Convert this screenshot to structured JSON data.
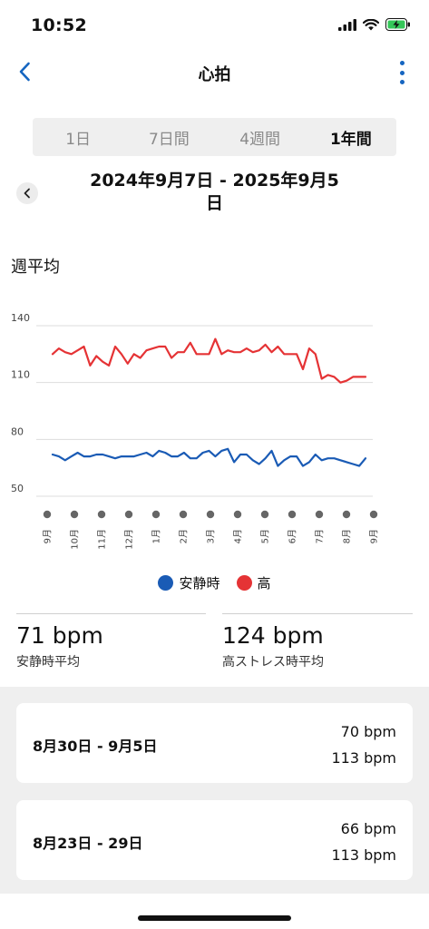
{
  "status": {
    "time": "10:52"
  },
  "nav": {
    "title": "心拍"
  },
  "tabs": [
    {
      "label": "1日",
      "active": false
    },
    {
      "label": "7日間",
      "active": false
    },
    {
      "label": "4週間",
      "active": false
    },
    {
      "label": "1年間",
      "active": true
    }
  ],
  "date_range": {
    "line1": "2024年9月7日 - 2025年9月5",
    "line2": "日"
  },
  "section_title": "週平均",
  "colors": {
    "resting": "#1a5bb5",
    "high": "#e53335",
    "accent": "#1565c0"
  },
  "chart_data": {
    "type": "line",
    "ylim": [
      50,
      140
    ],
    "yticks": [
      140,
      110,
      80,
      50
    ],
    "xticks": [
      "9月",
      "10月",
      "11月",
      "12月",
      "1月",
      "2月",
      "3月",
      "4月",
      "5月",
      "6月",
      "7月",
      "8月",
      "9月"
    ],
    "series": [
      {
        "name": "安静時",
        "color": "#1a5bb5",
        "values": [
          72,
          71,
          69,
          71,
          73,
          71,
          71,
          72,
          72,
          71,
          70,
          71,
          71,
          71,
          72,
          73,
          71,
          74,
          73,
          71,
          71,
          73,
          70,
          70,
          73,
          74,
          71,
          74,
          75,
          68,
          72,
          72,
          69,
          67,
          70,
          74,
          66,
          69,
          71,
          71,
          66,
          68,
          72,
          69,
          70,
          70,
          69,
          68,
          67,
          66,
          70
        ]
      },
      {
        "name": "高",
        "color": "#e53335",
        "values": [
          125,
          128,
          126,
          125,
          127,
          129,
          119,
          124,
          121,
          119,
          129,
          125,
          120,
          125,
          123,
          127,
          128,
          129,
          129,
          123,
          126,
          126,
          131,
          125,
          125,
          125,
          133,
          125,
          127,
          126,
          126,
          128,
          126,
          127,
          130,
          126,
          129,
          125,
          125,
          125,
          117,
          128,
          125,
          112,
          114,
          113,
          110,
          111,
          113,
          113,
          113
        ]
      }
    ]
  },
  "legend": [
    {
      "label": "安静時",
      "color": "#1a5bb5"
    },
    {
      "label": "高",
      "color": "#e53335"
    }
  ],
  "stats": {
    "resting": {
      "value": "71 bpm",
      "label": "安静時平均"
    },
    "high": {
      "value": "124 bpm",
      "label": "高ストレス時平均"
    }
  },
  "weeks": [
    {
      "label": "8月30日 - 9月5日",
      "resting": "70 bpm",
      "high": "113 bpm"
    },
    {
      "label": "8月23日 - 29日",
      "resting": "66 bpm",
      "high": "113 bpm"
    }
  ]
}
